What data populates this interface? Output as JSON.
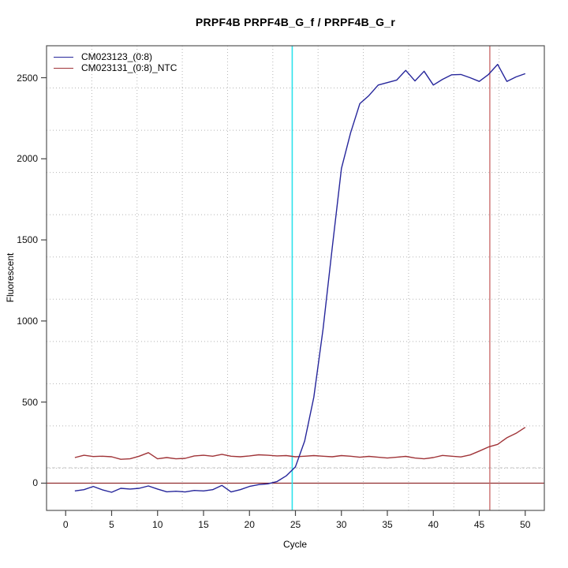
{
  "chart_data": {
    "type": "line",
    "title": "PRPF4B  PRPF4B_G_f / PRPF4B_G_r",
    "xlabel": "Cycle",
    "ylabel": "Fluorescent",
    "x_ticks": [
      0,
      5,
      10,
      15,
      20,
      25,
      30,
      35,
      40,
      45,
      50
    ],
    "y_ticks": [
      0,
      500,
      1000,
      1500,
      2000,
      2500
    ],
    "xlim": [
      -2.08,
      52.08
    ],
    "ylim": [
      -168,
      2697
    ],
    "grid": {
      "style": "dotted",
      "internal_lines": 10,
      "color": "#b5b5b5"
    },
    "legend_position": "top-left",
    "border_color": "#555555",
    "series": [
      {
        "name": "CM023123_(0:8)",
        "color": "#26269B",
        "x": [
          1,
          2,
          3,
          4,
          5,
          6,
          7,
          8,
          9,
          10,
          11,
          12,
          13,
          14,
          15,
          16,
          17,
          18,
          19,
          20,
          21,
          22,
          23,
          24,
          25,
          26,
          27,
          28,
          29,
          30,
          31,
          32,
          33,
          34,
          35,
          36,
          37,
          38,
          39,
          40,
          41,
          42,
          43,
          44,
          45,
          46,
          47,
          48,
          49,
          50
        ],
        "values": [
          -48,
          -40,
          -20,
          -41,
          -56,
          -32,
          -36,
          -32,
          -17,
          -36,
          -53,
          -50,
          -54,
          -45,
          -48,
          -40,
          -14,
          -54,
          -40,
          -20,
          -9,
          -4,
          10,
          45,
          101,
          260,
          530,
          950,
          1450,
          1940,
          2160,
          2340,
          2390,
          2455,
          2470,
          2485,
          2545,
          2480,
          2540,
          2455,
          2490,
          2518,
          2520,
          2500,
          2477,
          2520,
          2582,
          2477,
          2505,
          2525
        ]
      },
      {
        "name": "CM023131_(0:8)_NTC",
        "color": "#A03438",
        "x": [
          1,
          2,
          3,
          4,
          5,
          6,
          7,
          8,
          9,
          10,
          11,
          12,
          13,
          14,
          15,
          16,
          17,
          18,
          19,
          20,
          21,
          22,
          23,
          24,
          25,
          26,
          27,
          28,
          29,
          30,
          31,
          32,
          33,
          34,
          35,
          36,
          37,
          38,
          39,
          40,
          41,
          42,
          43,
          44,
          45,
          46,
          47,
          48,
          49,
          50
        ],
        "values": [
          158,
          172,
          164,
          166,
          163,
          147,
          150,
          166,
          188,
          150,
          158,
          150,
          153,
          168,
          172,
          166,
          178,
          166,
          163,
          168,
          175,
          172,
          168,
          170,
          163,
          166,
          170,
          166,
          163,
          170,
          166,
          160,
          165,
          160,
          155,
          160,
          165,
          155,
          150,
          158,
          171,
          166,
          162,
          174,
          198,
          223,
          239,
          280,
          307,
          344
        ]
      }
    ],
    "reference_lines": {
      "threshold_horizontal": {
        "y": 95,
        "style": "dashed",
        "color": "#cfcfcf"
      },
      "zero_horizontal": {
        "y": 0,
        "style": "solid",
        "color": "#8B2022"
      },
      "ct_vertical_sample": {
        "x": 24.65,
        "style": "solid",
        "color": "#2EE3EC"
      },
      "ct_vertical_ntc": {
        "x": 46.15,
        "style": "solid",
        "color": "#C86464"
      }
    }
  }
}
